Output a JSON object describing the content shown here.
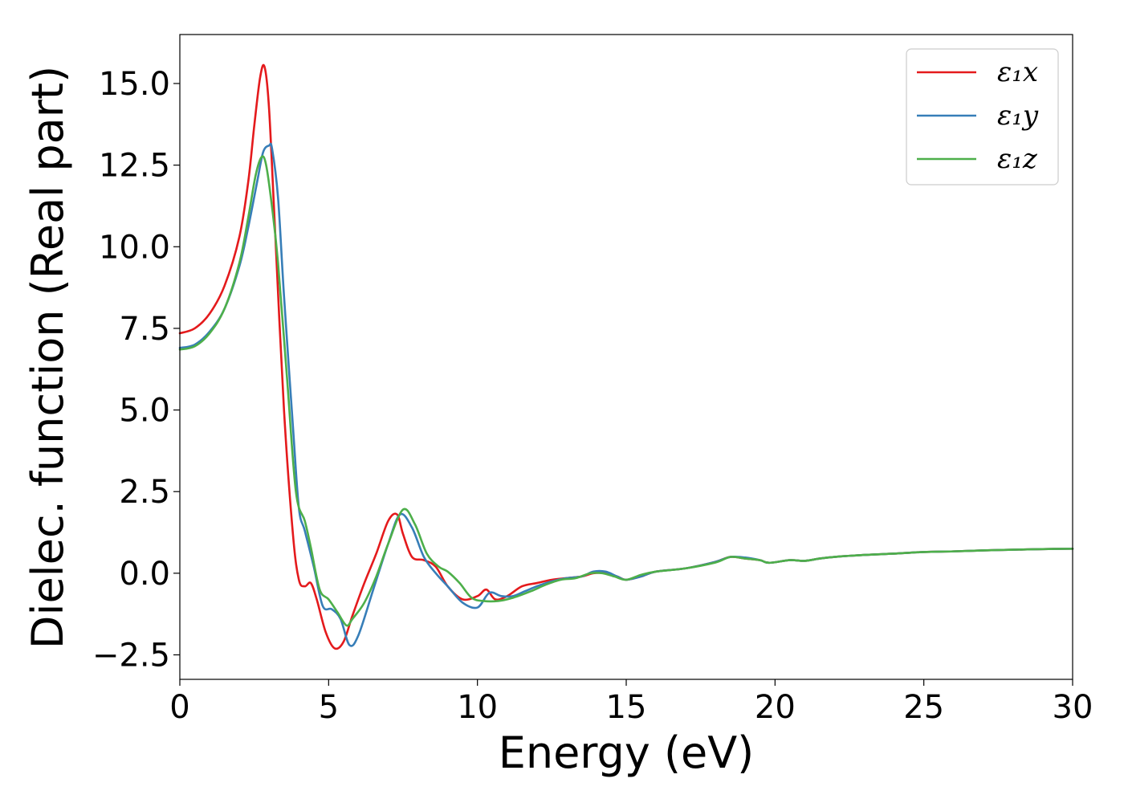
{
  "chart_data": {
    "type": "line",
    "title": "",
    "xlabel": "Energy (eV)",
    "ylabel": "Dielec. function (Real part)",
    "xlim": [
      0,
      30
    ],
    "ylim": [
      -3.25,
      16.5
    ],
    "xticks": [
      0,
      5,
      10,
      15,
      20,
      25,
      30
    ],
    "yticks": [
      -2.5,
      0.0,
      2.5,
      5.0,
      7.5,
      10.0,
      12.5,
      15.0
    ],
    "xtick_labels": [
      "0",
      "5",
      "10",
      "15",
      "20",
      "25",
      "30"
    ],
    "ytick_labels": [
      "−2.5",
      "0.0",
      "2.5",
      "5.0",
      "7.5",
      "10.0",
      "12.5",
      "15.0"
    ],
    "grid": false,
    "legend_position": "top-right",
    "series": [
      {
        "name": "ε₁x",
        "color": "#e41a1c",
        "x": [
          0,
          0.5,
          1.0,
          1.5,
          2.0,
          2.3,
          2.5,
          2.7,
          2.85,
          3.0,
          3.2,
          3.5,
          3.8,
          4.0,
          4.2,
          4.4,
          4.6,
          4.9,
          5.2,
          5.5,
          5.8,
          6.2,
          6.6,
          7.0,
          7.3,
          7.5,
          7.8,
          8.2,
          8.6,
          9.0,
          9.5,
          10.0,
          10.3,
          10.6,
          11.0,
          11.5,
          12.0,
          12.5,
          13.0,
          13.5,
          13.9,
          14.3,
          14.7,
          15.0,
          15.5,
          16.0,
          17.0,
          18.0,
          18.5,
          19.0,
          19.5,
          19.8,
          20.5,
          21.0,
          21.5,
          22.0,
          23.0,
          24.0,
          25.0,
          26.0,
          27.0,
          28.0,
          29.0,
          30.0
        ],
        "y": [
          7.35,
          7.5,
          7.95,
          8.8,
          10.3,
          12.0,
          13.7,
          15.2,
          15.5,
          14.2,
          10.5,
          5.0,
          1.2,
          -0.2,
          -0.4,
          -0.3,
          -0.8,
          -1.8,
          -2.3,
          -2.1,
          -1.3,
          -0.3,
          0.6,
          1.6,
          1.8,
          1.2,
          0.5,
          0.4,
          0.2,
          -0.4,
          -0.8,
          -0.7,
          -0.5,
          -0.8,
          -0.7,
          -0.4,
          -0.3,
          -0.2,
          -0.15,
          -0.1,
          0.0,
          0.0,
          -0.1,
          -0.2,
          -0.1,
          0.05,
          0.15,
          0.35,
          0.5,
          0.45,
          0.4,
          0.32,
          0.4,
          0.38,
          0.45,
          0.5,
          0.56,
          0.6,
          0.65,
          0.67,
          0.7,
          0.72,
          0.74,
          0.75
        ]
      },
      {
        "name": "ε₁y",
        "color": "#377eb8",
        "x": [
          0,
          0.5,
          1.0,
          1.5,
          2.0,
          2.3,
          2.6,
          2.8,
          3.0,
          3.1,
          3.3,
          3.5,
          3.8,
          4.0,
          4.2,
          4.5,
          4.8,
          5.1,
          5.4,
          5.7,
          6.0,
          6.5,
          7.0,
          7.4,
          7.8,
          8.2,
          8.6,
          9.0,
          9.5,
          10.0,
          10.4,
          10.8,
          11.2,
          11.6,
          12.0,
          12.5,
          13.0,
          13.5,
          13.9,
          14.3,
          14.7,
          15.0,
          15.5,
          16.0,
          17.0,
          18.0,
          18.5,
          19.0,
          19.5,
          19.8,
          20.5,
          21.0,
          21.5,
          22.0,
          23.0,
          24.0,
          25.0,
          26.0,
          27.0,
          28.0,
          29.0,
          30.0
        ],
        "y": [
          6.9,
          7.0,
          7.4,
          8.1,
          9.4,
          10.6,
          12.0,
          12.9,
          13.1,
          13.0,
          11.5,
          8.5,
          4.5,
          2.0,
          1.3,
          0.2,
          -1.0,
          -1.1,
          -1.4,
          -2.2,
          -1.9,
          -0.5,
          0.9,
          1.8,
          1.4,
          0.5,
          0.0,
          -0.4,
          -0.9,
          -1.05,
          -0.6,
          -0.7,
          -0.7,
          -0.55,
          -0.4,
          -0.25,
          -0.15,
          -0.1,
          0.05,
          0.05,
          -0.1,
          -0.2,
          -0.1,
          0.05,
          0.15,
          0.35,
          0.5,
          0.48,
          0.4,
          0.32,
          0.4,
          0.38,
          0.45,
          0.5,
          0.56,
          0.6,
          0.65,
          0.67,
          0.7,
          0.72,
          0.74,
          0.75
        ]
      },
      {
        "name": "ε₁z",
        "color": "#4daf4a",
        "x": [
          0,
          0.5,
          1.0,
          1.5,
          2.0,
          2.3,
          2.55,
          2.75,
          2.9,
          3.1,
          3.3,
          3.6,
          3.9,
          4.2,
          4.4,
          4.7,
          5.0,
          5.3,
          5.6,
          5.8,
          6.2,
          6.6,
          7.0,
          7.5,
          7.9,
          8.3,
          8.7,
          9.0,
          9.4,
          9.8,
          10.2,
          10.7,
          11.2,
          11.8,
          12.3,
          12.8,
          13.3,
          13.8,
          14.2,
          14.6,
          15.0,
          15.5,
          16.0,
          17.0,
          18.0,
          18.5,
          19.0,
          19.5,
          19.8,
          20.5,
          21.0,
          21.5,
          22.0,
          23.0,
          24.0,
          25.0,
          26.0,
          27.0,
          28.0,
          29.0,
          30.0
        ],
        "y": [
          6.85,
          6.95,
          7.35,
          8.1,
          9.5,
          10.9,
          12.2,
          12.75,
          12.5,
          11.2,
          9.5,
          6.0,
          2.5,
          1.6,
          0.8,
          -0.5,
          -0.8,
          -1.2,
          -1.6,
          -1.4,
          -0.9,
          -0.1,
          0.9,
          1.95,
          1.5,
          0.6,
          0.2,
          0.05,
          -0.3,
          -0.75,
          -0.85,
          -0.85,
          -0.75,
          -0.55,
          -0.35,
          -0.2,
          -0.15,
          0.0,
          0.0,
          -0.1,
          -0.2,
          -0.05,
          0.05,
          0.15,
          0.33,
          0.5,
          0.45,
          0.4,
          0.32,
          0.4,
          0.38,
          0.45,
          0.5,
          0.56,
          0.6,
          0.65,
          0.67,
          0.7,
          0.72,
          0.74,
          0.75
        ]
      }
    ]
  }
}
